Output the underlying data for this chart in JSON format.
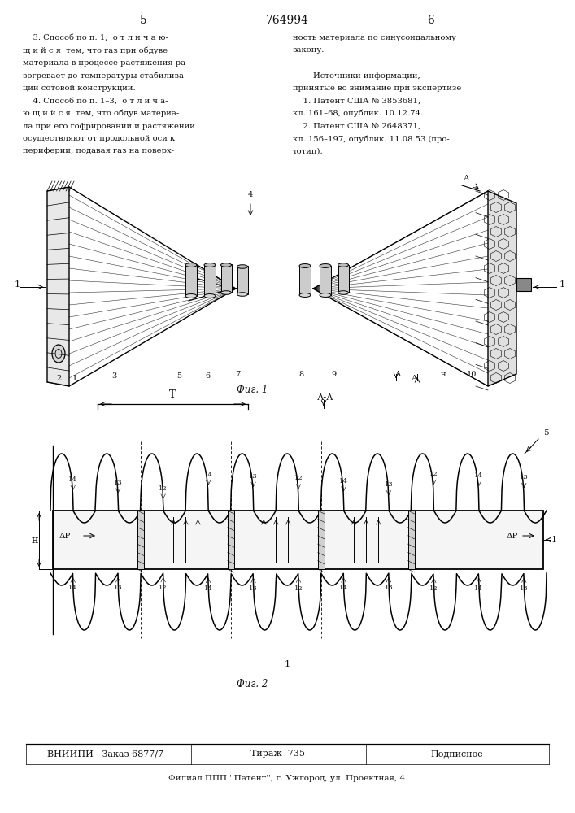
{
  "page_number_left": "5",
  "page_number_center": "764994",
  "page_number_right": "6",
  "background_color": "#ffffff",
  "text_color": "#1a1a1a",
  "left_column_lines": [
    "    3. Способ по п. 1,  о т л и ч а ю-",
    "щ и й с я  тем, что газ при обдуве",
    "материала в процессе растяжения ра-",
    "зогревает до температуры стабилиза-",
    "ции сотовой конструкции.",
    "    4. Способ по п. 1–3,  о т л и ч а-",
    "ю щ и й с я  тем, что обдув материа-",
    "ла при его гофрировании и растяжении",
    "осуществляют от продольной оси к",
    "периферии, подавая газ на поверх-"
  ],
  "right_column_lines": [
    "ность материала по синусоидальному",
    "закону.",
    "",
    "        Источники информации,",
    "принятые во внимание при экспертизе",
    "    1. Патент США № 3853681,",
    "кл. 161–68, опублик. 10.12.74.",
    "    2. Патент США № 2648371,",
    "кл. 156–197, опублик. 11.08.53 (про-",
    "тотип)."
  ],
  "fig1_label": "Фиг. 1",
  "fig2_label": "Фиг. 2",
  "bottom_bar_left": "ВНИИПИ   Заказ 6877/7",
  "bottom_bar_center": "Тираж  735",
  "bottom_bar_right": "Подписное",
  "bottom_small": "Филиал ППП ''Патент'', г. Ужгород, ул. Проектная, 4",
  "lc": "#000000",
  "bg": "#ffffff",
  "tc": "#111111"
}
